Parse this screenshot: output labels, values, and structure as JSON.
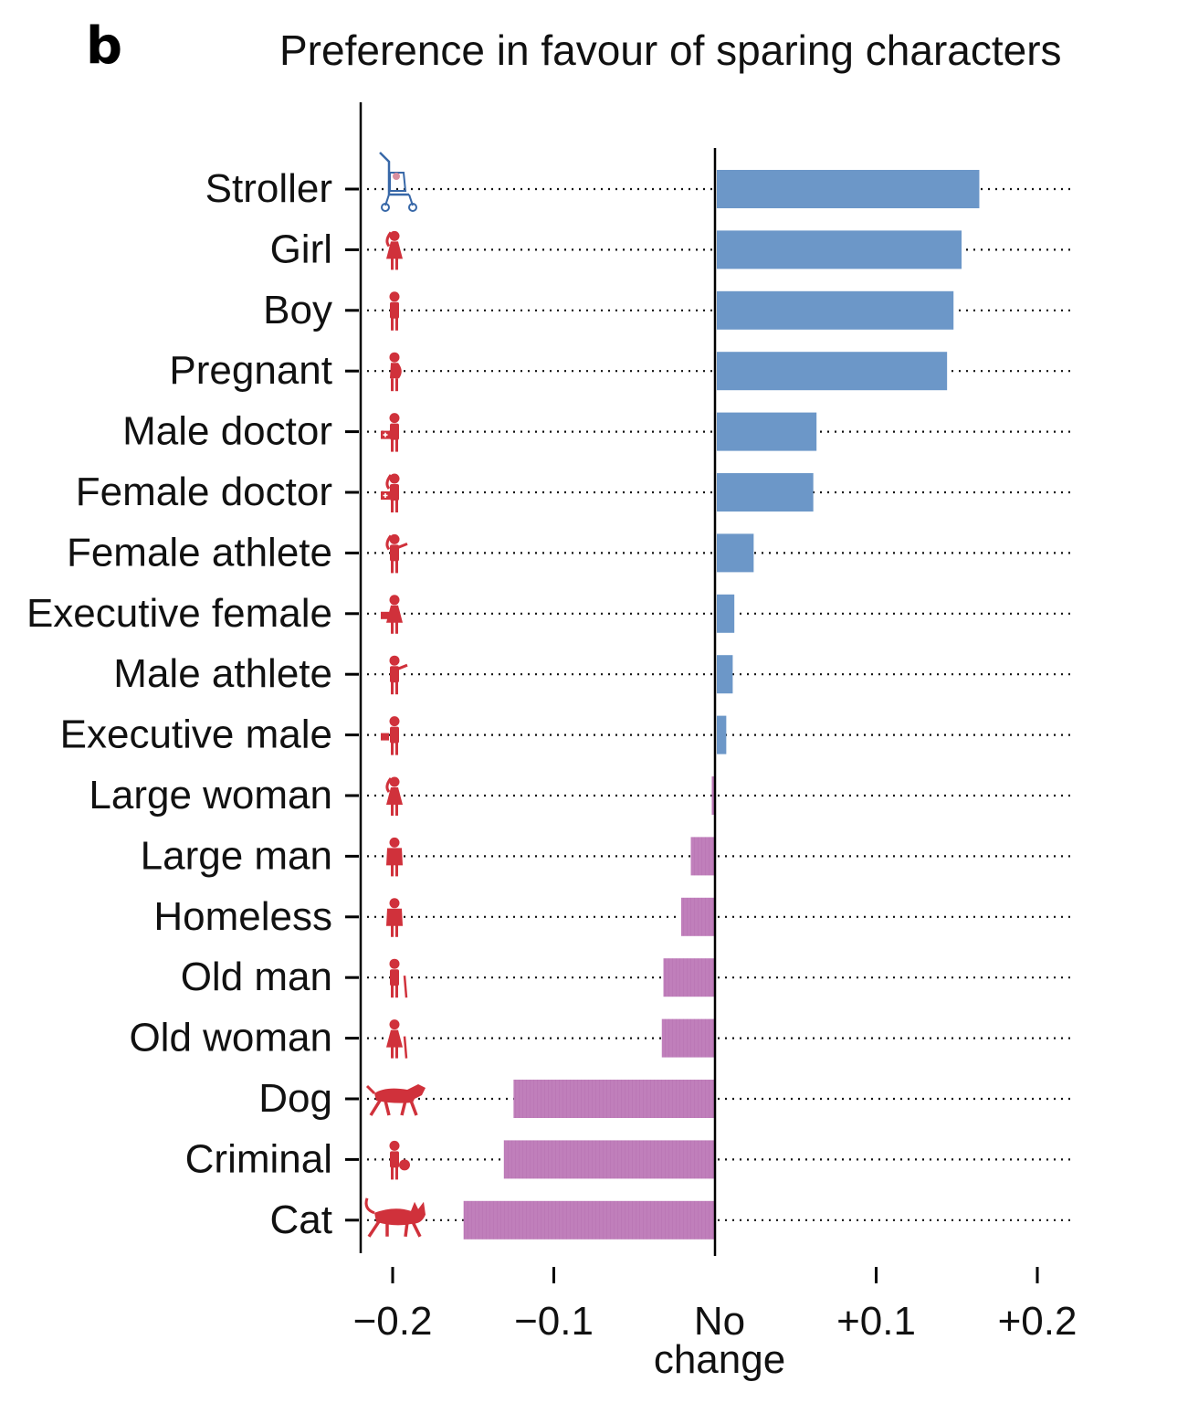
{
  "panel_label": "b",
  "chart_data": {
    "type": "bar",
    "orientation": "horizontal",
    "title": "Preference in favour of sparing characters",
    "xlabel": "",
    "ylabel": "",
    "xlim": [
      -0.22,
      0.22
    ],
    "x_ticks": [
      {
        "value": -0.2,
        "label": "−0.2"
      },
      {
        "value": -0.1,
        "label": "−0.1"
      },
      {
        "value": 0,
        "label": "No",
        "label2": "change"
      },
      {
        "value": 0.1,
        "label": "+0.1"
      },
      {
        "value": 0.2,
        "label": "+0.2"
      }
    ],
    "categories": [
      "Stroller",
      "Girl",
      "Boy",
      "Pregnant",
      "Male doctor",
      "Female doctor",
      "Female athlete",
      "Executive female",
      "Male athlete",
      "Executive male",
      "Large woman",
      "Large man",
      "Homeless",
      "Old man",
      "Old woman",
      "Dog",
      "Criminal",
      "Cat"
    ],
    "values": [
      0.164,
      0.153,
      0.148,
      0.144,
      0.063,
      0.061,
      0.024,
      0.012,
      0.011,
      0.007,
      -0.002,
      -0.015,
      -0.021,
      -0.032,
      -0.033,
      -0.125,
      -0.131,
      -0.156
    ],
    "colors": {
      "positive": "#6c97c8",
      "negative": "#c07fbb",
      "icon_red": "#d0313b",
      "icon_blue": "#3868a8",
      "axis": "#000000",
      "guide": "#111111"
    },
    "icons": [
      "stroller-icon",
      "girl-icon",
      "boy-icon",
      "pregnant-icon",
      "male-doctor-icon",
      "female-doctor-icon",
      "female-athlete-icon",
      "executive-female-icon",
      "male-athlete-icon",
      "executive-male-icon",
      "large-woman-icon",
      "large-man-icon",
      "homeless-icon",
      "old-man-icon",
      "old-woman-icon",
      "dog-icon",
      "criminal-icon",
      "cat-icon"
    ],
    "grid": false,
    "legend": "none"
  }
}
